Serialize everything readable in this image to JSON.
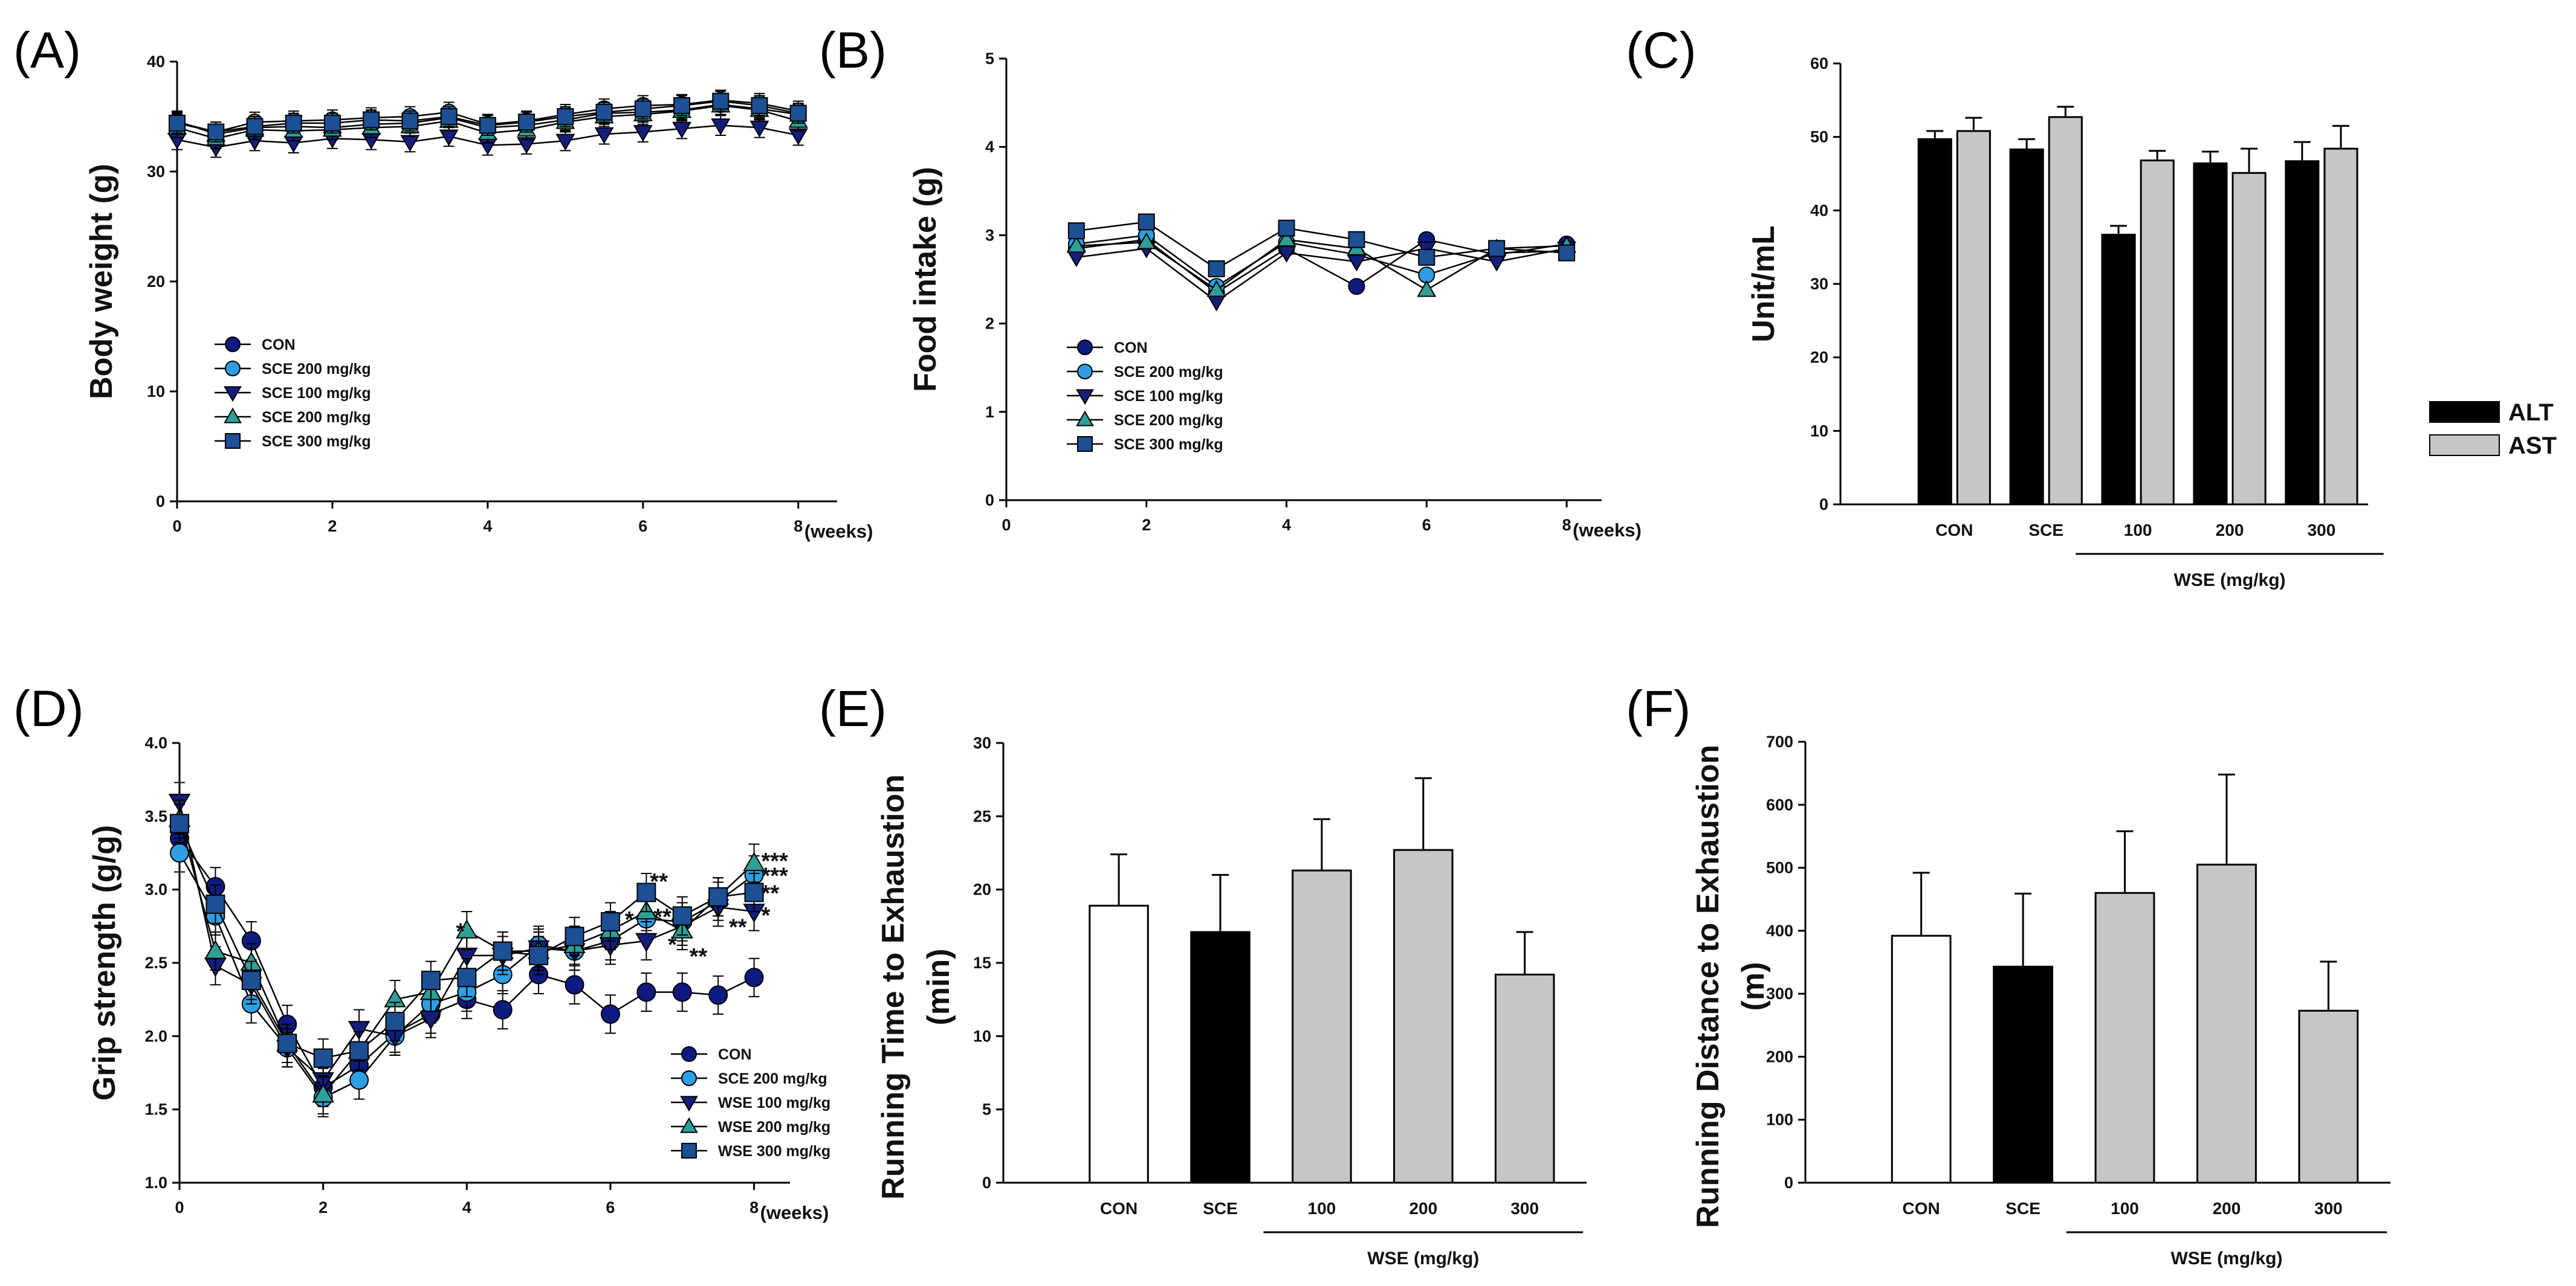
{
  "colors": {
    "con": "#0d1a80",
    "sce": "#2f9ee3",
    "wse100": "#131e7c",
    "wse200": "#2d9f96",
    "wse300": "#1c4f94",
    "bar_black": "#000000",
    "bar_gray": "#c6c6c6",
    "bar_white": "#ffffff"
  },
  "chart_data": [
    {
      "id": "A",
      "panel_label": "(A)",
      "type": "line",
      "ylabel": "Body weight (g)",
      "x_unit": "(weeks)",
      "xlim": [
        0,
        8.5
      ],
      "ylim": [
        0,
        40
      ],
      "xticks": [
        0,
        2,
        4,
        6,
        8
      ],
      "yticks": [
        0,
        10,
        20,
        30,
        40
      ],
      "x": [
        0,
        0.5,
        1,
        1.5,
        2,
        2.5,
        3,
        3.5,
        4,
        4.5,
        5,
        5.5,
        6,
        6.5,
        7,
        7.5,
        8
      ],
      "series": [
        {
          "name": "CON",
          "marker": "circle",
          "color": "#0d1a80",
          "values": [
            34.6,
            33.4,
            34.0,
            34.1,
            34.0,
            34.3,
            34.4,
            34.9,
            34.0,
            34.2,
            34.7,
            35.3,
            35.4,
            35.6,
            36.1,
            35.7,
            35.2
          ]
        },
        {
          "name": "SCE 200 mg/kg",
          "marker": "circle",
          "color": "#2f9ee3",
          "values": [
            34.5,
            33.6,
            34.5,
            34.6,
            34.7,
            34.9,
            35.0,
            35.4,
            34.3,
            34.6,
            35.2,
            35.7,
            36.0,
            36.1,
            36.5,
            36.2,
            35.5
          ]
        },
        {
          "name": "SCE 100 mg/kg",
          "marker": "tri_down",
          "color": "#131e7c",
          "values": [
            32.9,
            32.2,
            32.8,
            32.6,
            33.0,
            32.9,
            32.7,
            33.2,
            32.4,
            32.5,
            32.8,
            33.4,
            33.6,
            33.9,
            34.2,
            34.0,
            33.3
          ]
        },
        {
          "name": "SCE 200 mg/kg",
          "marker": "tri_up",
          "color": "#2d9f96",
          "values": [
            34.0,
            33.0,
            33.8,
            33.7,
            33.8,
            34.0,
            34.1,
            34.6,
            33.5,
            33.8,
            34.5,
            35.0,
            35.2,
            35.5,
            36.0,
            35.6,
            34.6
          ]
        },
        {
          "name": "SCE 300 mg/kg",
          "marker": "square",
          "color": "#1c4f94",
          "values": [
            34.4,
            33.6,
            34.1,
            34.4,
            34.4,
            34.7,
            34.6,
            35.0,
            34.2,
            34.5,
            35.0,
            35.4,
            35.7,
            36.0,
            36.4,
            36.0,
            35.3
          ]
        }
      ]
    },
    {
      "id": "B",
      "panel_label": "(B)",
      "type": "line",
      "ylabel": "Food intake (g)",
      "x_unit": "(weeks)",
      "xlim": [
        0,
        8.5
      ],
      "ylim": [
        0,
        5
      ],
      "xticks": [
        0,
        2,
        4,
        6,
        8
      ],
      "yticks": [
        0,
        1,
        2,
        3,
        4,
        5
      ],
      "x": [
        1,
        2,
        3,
        4,
        5,
        6,
        7,
        8
      ],
      "series": [
        {
          "name": "CON",
          "marker": "circle",
          "color": "#0d1a80",
          "values": [
            2.85,
            2.95,
            2.35,
            2.85,
            2.42,
            2.95,
            2.78,
            2.9
          ]
        },
        {
          "name": "SCE 200 mg/kg",
          "marker": "circle",
          "color": "#2f9ee3",
          "values": [
            2.9,
            3.0,
            2.42,
            2.92,
            2.78,
            2.55,
            2.8,
            2.82
          ]
        },
        {
          "name": "SCE 100 mg/kg",
          "marker": "tri_down",
          "color": "#131e7c",
          "values": [
            2.75,
            2.85,
            2.25,
            2.8,
            2.7,
            2.85,
            2.7,
            2.85
          ]
        },
        {
          "name": "SCE 200 mg/kg",
          "marker": "tri_up",
          "color": "#2d9f96",
          "values": [
            2.88,
            2.92,
            2.38,
            2.95,
            2.85,
            2.38,
            2.85,
            2.88
          ]
        },
        {
          "name": "SCE 300 mg/kg",
          "marker": "square",
          "color": "#1c4f94",
          "values": [
            3.05,
            3.15,
            2.62,
            3.08,
            2.95,
            2.75,
            2.85,
            2.8
          ]
        }
      ]
    },
    {
      "id": "C",
      "panel_label": "(C)",
      "type": "bar",
      "ylabel": "Unit/mL",
      "ylim": [
        0,
        60
      ],
      "yticks": [
        0,
        10,
        20,
        30,
        40,
        50,
        60
      ],
      "categories": [
        "CON",
        "SCE",
        "100",
        "200",
        "300"
      ],
      "group_label": "WSE (mg/kg)",
      "series": [
        {
          "name": "ALT",
          "color": "#000000",
          "values": [
            49.7,
            48.3,
            36.7,
            46.4,
            46.7
          ],
          "errors": [
            1.1,
            1.4,
            1.2,
            1.6,
            2.6
          ]
        },
        {
          "name": "AST",
          "color": "#c6c6c6",
          "values": [
            50.8,
            52.7,
            46.8,
            45.1,
            48.4
          ],
          "errors": [
            1.8,
            1.4,
            1.3,
            3.3,
            3.1
          ]
        }
      ]
    },
    {
      "id": "D",
      "panel_label": "(D)",
      "type": "line",
      "ylabel": "Grip strength (g/g)",
      "x_unit": "(weeks)",
      "xlim": [
        0,
        8.5
      ],
      "ylim": [
        1.0,
        4.0
      ],
      "xticks": [
        0,
        2,
        4,
        6,
        8
      ],
      "yticks": [
        1.0,
        1.5,
        2.0,
        2.5,
        3.0,
        3.5,
        4.0
      ],
      "x": [
        0,
        0.5,
        1,
        1.5,
        2,
        2.5,
        3,
        3.5,
        4,
        4.5,
        5,
        5.5,
        6,
        6.5,
        7,
        7.5,
        8
      ],
      "error": 0.13,
      "series": [
        {
          "name": "CON",
          "marker": "circle",
          "color": "#0d1a80",
          "values": [
            3.35,
            3.02,
            2.65,
            2.08,
            1.65,
            1.8,
            2.02,
            2.15,
            2.25,
            2.18,
            2.42,
            2.35,
            2.15,
            2.3,
            2.3,
            2.28,
            2.4
          ]
        },
        {
          "name": "SCE 200 mg/kg",
          "marker": "circle",
          "color": "#2f9ee3",
          "values": [
            3.25,
            2.82,
            2.22,
            1.92,
            1.58,
            1.7,
            2.0,
            2.22,
            2.3,
            2.42,
            2.62,
            2.58,
            2.65,
            2.8,
            2.78,
            2.92,
            3.1
          ]
        },
        {
          "name": "WSE 100 mg/kg",
          "marker": "tri_down",
          "color": "#131e7c",
          "values": [
            3.6,
            2.48,
            2.35,
            1.92,
            1.7,
            2.05,
            2.0,
            2.12,
            2.55,
            2.55,
            2.6,
            2.58,
            2.62,
            2.65,
            2.75,
            2.88,
            2.85
          ]
        },
        {
          "name": "WSE  200 mg/kg",
          "marker": "tri_up",
          "color": "#2d9f96",
          "values": [
            3.48,
            2.58,
            2.5,
            1.95,
            1.6,
            1.9,
            2.25,
            2.3,
            2.72,
            2.58,
            2.58,
            2.62,
            2.72,
            2.85,
            2.72,
            2.95,
            3.18
          ]
        },
        {
          "name": "WSE  300 mg/kg",
          "marker": "square",
          "color": "#1c4f94",
          "values": [
            3.45,
            2.9,
            2.38,
            1.95,
            1.85,
            1.9,
            2.1,
            2.38,
            2.4,
            2.58,
            2.55,
            2.68,
            2.78,
            2.98,
            2.82,
            2.95,
            2.98
          ]
        }
      ],
      "annotations": [
        {
          "text": "*",
          "x": 3.85,
          "y": 2.72
        },
        {
          "text": "**",
          "x": 6.55,
          "y": 3.06
        },
        {
          "text": "*",
          "x": 6.2,
          "y": 2.8
        },
        {
          "text": "**",
          "x": 6.6,
          "y": 2.82
        },
        {
          "text": "*",
          "x": 6.8,
          "y": 2.63
        },
        {
          "text": "**",
          "x": 7.1,
          "y": 2.55
        },
        {
          "text": "**",
          "x": 7.65,
          "y": 2.75
        },
        {
          "text": "***",
          "x": 8.1,
          "y": 3.2
        },
        {
          "text": "***",
          "x": 8.1,
          "y": 3.1
        },
        {
          "text": "**",
          "x": 8.1,
          "y": 2.98
        },
        {
          "text": "*",
          "x": 8.1,
          "y": 2.83
        }
      ]
    },
    {
      "id": "E",
      "panel_label": "(E)",
      "type": "bar",
      "ylabel": "Running Time to Exhaustion",
      "ylabel2": "(min)",
      "ylim": [
        0,
        30
      ],
      "yticks": [
        0,
        5,
        10,
        15,
        20,
        25,
        30
      ],
      "categories": [
        "CON",
        "SCE",
        "100",
        "200",
        "300"
      ],
      "group_label": "WSE (mg/kg)",
      "values": [
        18.9,
        17.1,
        21.3,
        22.7,
        14.2
      ],
      "errors": [
        3.5,
        3.9,
        3.5,
        4.9,
        2.9
      ],
      "bar_colors": [
        "#ffffff",
        "#000000",
        "#c6c6c6",
        "#c6c6c6",
        "#c6c6c6"
      ]
    },
    {
      "id": "F",
      "panel_label": "(F)",
      "type": "bar",
      "ylabel": "Running Distance to Exhaustion",
      "ylabel2": "(m)",
      "ylim": [
        0,
        700
      ],
      "yticks": [
        0,
        100,
        200,
        300,
        400,
        500,
        600,
        700
      ],
      "categories": [
        "CON",
        "SCE",
        "100",
        "200",
        "300"
      ],
      "group_label": "WSE (mg/kg)",
      "values": [
        392,
        343,
        460,
        505,
        273
      ],
      "errors": [
        100,
        116,
        98,
        143,
        78
      ],
      "bar_colors": [
        "#ffffff",
        "#000000",
        "#c6c6c6",
        "#c6c6c6",
        "#c6c6c6"
      ]
    }
  ]
}
